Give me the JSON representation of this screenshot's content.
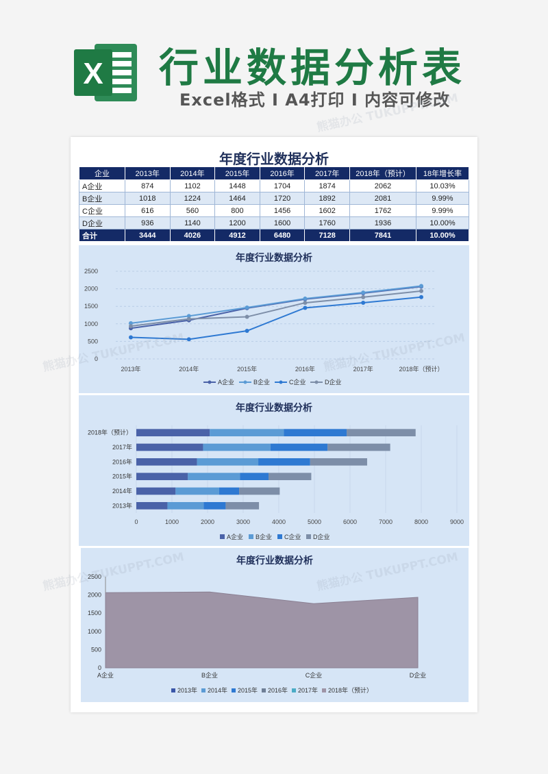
{
  "banner": {
    "logo_letter": "X",
    "title": "行业数据分析表",
    "subtitle": "Excel格式 I A4打印 I 内容可修改"
  },
  "colors": {
    "title_green": "#1f7a44",
    "header_navy": "#142a66",
    "panel_blue": "#d6e5f6",
    "series_a": "#4a62a8",
    "series_b": "#5b9bd5",
    "series_c": "#2e79d2",
    "series_d": "#7d8ea8",
    "area_fill": "#9e94a6"
  },
  "watermark": "熊猫办公 TUKUPPT.COM",
  "sheet_title": "年度行业数据分析",
  "table": {
    "headers": [
      "企业",
      "2013年",
      "2014年",
      "2015年",
      "2016年",
      "2017年",
      "2018年（预计）",
      "18年增长率"
    ],
    "rows": [
      [
        "A企业",
        "874",
        "1102",
        "1448",
        "1704",
        "1874",
        "2062",
        "10.03%"
      ],
      [
        "B企业",
        "1018",
        "1224",
        "1464",
        "1720",
        "1892",
        "2081",
        "9.99%"
      ],
      [
        "C企业",
        "616",
        "560",
        "800",
        "1456",
        "1602",
        "1762",
        "9.99%"
      ],
      [
        "D企业",
        "936",
        "1140",
        "1200",
        "1600",
        "1760",
        "1936",
        "10.00%"
      ]
    ],
    "total": [
      "合计",
      "3444",
      "4026",
      "4912",
      "6480",
      "7128",
      "7841",
      "10.00%"
    ]
  },
  "chart_data": [
    {
      "type": "line",
      "title": "年度行业数据分析",
      "x": [
        "2013年",
        "2014年",
        "2015年",
        "2016年",
        "2017年",
        "2018年（预计）"
      ],
      "ylim": [
        0,
        2500
      ],
      "yticks": [
        0,
        500,
        1000,
        1500,
        2000,
        2500
      ],
      "grid": true,
      "legend": "bottom",
      "series": [
        {
          "name": "A企业",
          "values": [
            874,
            1102,
            1448,
            1704,
            1874,
            2062
          ]
        },
        {
          "name": "B企业",
          "values": [
            1018,
            1224,
            1464,
            1720,
            1892,
            2081
          ]
        },
        {
          "name": "C企业",
          "values": [
            616,
            560,
            800,
            1456,
            1602,
            1762
          ]
        },
        {
          "name": "D企业",
          "values": [
            936,
            1140,
            1200,
            1600,
            1760,
            1936
          ]
        }
      ]
    },
    {
      "type": "bar",
      "orientation": "horizontal",
      "stacked": true,
      "title": "年度行业数据分析",
      "categories": [
        "2018年（预计）",
        "2017年",
        "2016年",
        "2015年",
        "2014年",
        "2013年"
      ],
      "xlim": [
        0,
        9000
      ],
      "xticks": [
        0,
        1000,
        2000,
        3000,
        4000,
        5000,
        6000,
        7000,
        8000,
        9000
      ],
      "legend": "bottom",
      "series": [
        {
          "name": "A企业",
          "values": [
            2062,
            1874,
            1704,
            1448,
            1102,
            874
          ]
        },
        {
          "name": "B企业",
          "values": [
            2081,
            1892,
            1720,
            1464,
            1224,
            1018
          ]
        },
        {
          "name": "C企业",
          "values": [
            1762,
            1602,
            1456,
            800,
            560,
            616
          ]
        },
        {
          "name": "D企业",
          "values": [
            1936,
            1760,
            1600,
            1200,
            1140,
            936
          ]
        }
      ]
    },
    {
      "type": "area",
      "title": "年度行业数据分析",
      "categories": [
        "A企业",
        "B企业",
        "C企业",
        "D企业"
      ],
      "ylim": [
        0,
        2500
      ],
      "yticks": [
        0,
        500,
        1000,
        1500,
        2000,
        2500
      ],
      "legend": "bottom",
      "legend_entries": [
        "2013年",
        "2014年",
        "2015年",
        "2016年",
        "2017年",
        "2018年（预计）"
      ],
      "visible_series": {
        "name": "2018年（预计）",
        "values": [
          2062,
          2081,
          1762,
          1936
        ]
      }
    }
  ]
}
